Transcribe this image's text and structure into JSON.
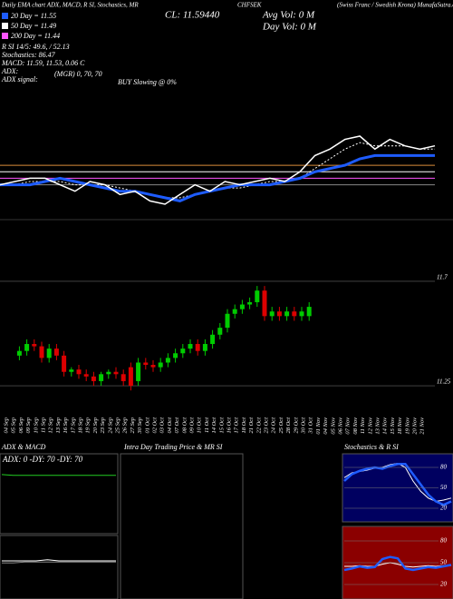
{
  "header": {
    "caption": "Daily EMA chart ADX, MACD, R SI, Stochastics, MR",
    "symbol": "CHFSEK",
    "source": "(Swiss Franc / Swedish Krona) MunafaSutra.com",
    "close": "CL: 11.59440",
    "avg_vol": "Avg Vol: 0  M",
    "day_vol": "Day Vol: 0  M",
    "ema_lines": [
      {
        "text": "20 Day = 11.55",
        "color": "#1e5cff"
      },
      {
        "text": "50 Day = 11.49",
        "color": "#ffffff"
      },
      {
        "text": "200 Day = 11.44",
        "color": "#ff55ff"
      }
    ],
    "lines": [
      "R       SI 14/5: 49.6, / 52.13",
      "Stochastics: 86.47",
      "MACD: 11.59, 11.53, 0.06  C",
      "ADX:",
      "ADX  signal:"
    ],
    "mgr": "(MGR) 0, 70, 70",
    "signal": "BUY Slowing @ 0%"
  },
  "indicator_chart": {
    "type": "line",
    "ylim": [
      11.2,
      11.9
    ],
    "series": [
      {
        "color": "#d98c3a",
        "values": [
          11.39,
          11.39
        ]
      },
      {
        "color": "#ffffff",
        "values": [
          11.37,
          11.37
        ]
      },
      {
        "color": "#ff55ff",
        "values": [
          11.35,
          11.35
        ]
      },
      {
        "color": "#888888",
        "values": [
          11.33,
          11.33
        ]
      },
      {
        "color": "#ffffff",
        "dashed": true,
        "values": [
          11.33,
          11.33,
          11.34,
          11.34,
          11.34,
          11.33,
          11.33,
          11.33,
          11.32,
          11.31,
          11.3,
          11.29,
          11.29,
          11.3,
          11.31,
          11.32,
          11.32,
          11.33,
          11.34,
          11.34,
          11.35,
          11.38,
          11.41,
          11.44,
          11.46,
          11.45,
          11.45,
          11.45,
          11.44,
          11.44
        ]
      },
      {
        "color": "#1e5cff",
        "width": 3,
        "values": [
          11.33,
          11.33,
          11.33,
          11.34,
          11.35,
          11.34,
          11.33,
          11.32,
          11.31,
          11.31,
          11.3,
          11.29,
          11.28,
          11.3,
          11.31,
          11.32,
          11.33,
          11.33,
          11.33,
          11.34,
          11.35,
          11.37,
          11.38,
          11.39,
          11.41,
          11.42,
          11.42,
          11.42,
          11.42,
          11.42
        ]
      },
      {
        "color": "#ffffff",
        "width": 1.5,
        "values": [
          11.33,
          11.34,
          11.35,
          11.35,
          11.33,
          11.31,
          11.34,
          11.33,
          11.3,
          11.31,
          11.28,
          11.27,
          11.3,
          11.33,
          11.31,
          11.34,
          11.33,
          11.34,
          11.35,
          11.34,
          11.37,
          11.42,
          11.44,
          11.47,
          11.48,
          11.44,
          11.47,
          11.45,
          11.44,
          11.45
        ]
      }
    ]
  },
  "price_chart": {
    "type": "candlestick",
    "up_color": "#00cc00",
    "down_color": "#dd0000",
    "ylim": [
      11.133,
      11.778
    ],
    "yticks": [
      11.7,
      11.25
    ],
    "dates": [
      "04 Sep",
      "05 Sep",
      "06 Sep",
      "09 Sep",
      "10 Sep",
      "11 Sep",
      "12 Sep",
      "13 Sep",
      "16 Sep",
      "17 Sep",
      "18 Sep",
      "19 Sep",
      "20 Sep",
      "23 Sep",
      "24 Sep",
      "25 Sep",
      "26 Sep",
      "27 Sep",
      "30 Sep",
      "01 Oct",
      "02 Oct",
      "03 Oct",
      "04 Oct",
      "07 Oct",
      "08 Oct",
      "09 Oct",
      "10 Oct",
      "11 Oct",
      "14 Oct",
      "15 Oct",
      "16 Oct",
      "17 Oct",
      "18 Oct",
      "21 Oct",
      "22 Oct",
      "23 Oct",
      "24 Oct",
      "25 Oct",
      "28 Oct",
      "29 Oct",
      "30 Oct",
      "31 Oct",
      "01 Nov",
      "04 Nov",
      "05 Nov",
      "06 Nov",
      "07 Nov",
      "08 Nov",
      "11 Nov",
      "12 Nov",
      "13 Nov",
      "14 Nov",
      "15 Nov",
      "18 Nov",
      "19 Nov",
      "20 Nov",
      "21 Nov"
    ],
    "open": [
      null,
      null,
      11.38,
      11.4,
      11.43,
      11.42,
      11.37,
      11.41,
      11.38,
      11.31,
      11.32,
      11.3,
      11.29,
      11.27,
      11.3,
      11.31,
      11.3,
      11.33,
      11.27,
      11.35,
      11.34,
      11.33,
      11.35,
      11.37,
      11.39,
      11.41,
      11.43,
      11.4,
      11.43,
      11.47,
      11.5,
      11.56,
      11.58,
      11.6,
      11.61,
      11.66,
      11.55,
      11.57,
      11.55,
      11.57,
      11.55,
      11.55,
      null,
      null,
      null,
      null,
      null,
      null,
      null,
      null,
      null,
      null,
      null,
      null,
      null,
      null,
      null
    ],
    "high": [
      null,
      null,
      11.42,
      11.45,
      11.45,
      11.44,
      11.43,
      11.43,
      11.4,
      11.33,
      11.34,
      11.32,
      11.31,
      11.31,
      11.32,
      11.33,
      11.32,
      11.35,
      11.37,
      11.37,
      11.36,
      11.37,
      11.39,
      11.41,
      11.43,
      11.45,
      11.45,
      11.45,
      11.49,
      11.52,
      11.58,
      11.6,
      11.62,
      11.63,
      11.68,
      11.68,
      11.59,
      11.59,
      11.59,
      11.59,
      11.59,
      11.61,
      null,
      null,
      null,
      null,
      null,
      null,
      null,
      null,
      null,
      null,
      null,
      null,
      null,
      null,
      null
    ],
    "low": [
      null,
      null,
      11.36,
      11.38,
      11.4,
      11.35,
      11.35,
      11.36,
      11.29,
      11.29,
      11.28,
      11.27,
      11.25,
      11.25,
      11.28,
      11.28,
      11.25,
      11.23,
      11.25,
      11.32,
      11.31,
      11.31,
      11.33,
      11.35,
      11.37,
      11.39,
      11.38,
      11.38,
      11.41,
      11.45,
      11.48,
      11.54,
      11.56,
      11.58,
      11.59,
      11.53,
      11.53,
      11.53,
      11.53,
      11.53,
      11.53,
      11.53,
      null,
      null,
      null,
      null,
      null,
      null,
      null,
      null,
      null,
      null,
      null,
      null,
      null,
      null,
      null
    ],
    "close": [
      null,
      null,
      11.4,
      11.43,
      11.42,
      11.37,
      11.41,
      11.38,
      11.31,
      11.32,
      11.3,
      11.29,
      11.27,
      11.3,
      11.31,
      11.3,
      11.27,
      11.25,
      11.35,
      11.34,
      11.33,
      11.35,
      11.37,
      11.39,
      11.41,
      11.43,
      11.4,
      11.43,
      11.47,
      11.5,
      11.56,
      11.58,
      11.6,
      11.61,
      11.66,
      11.55,
      11.57,
      11.55,
      11.57,
      11.55,
      11.57,
      11.59,
      null,
      null,
      null,
      null,
      null,
      null,
      null,
      null,
      null,
      null,
      null,
      null,
      null,
      null,
      null
    ]
  },
  "adx_panel": {
    "title": "ADX  & MACD",
    "readout": "ADX: 0  -DY: 70  -DY: 70",
    "ylim": [
      0,
      100
    ],
    "series": [
      {
        "color": "#22cc22",
        "values": [
          74,
          73,
          73,
          73,
          73,
          73,
          73,
          73,
          73,
          73,
          73
        ]
      }
    ]
  },
  "macd_panel": {
    "ylim": [
      -0.3,
      0.3
    ],
    "series": [
      {
        "color": "#888888",
        "values": [
          0.04,
          0.04,
          0.05,
          0.05,
          0.05,
          0.05,
          0.05,
          0.05,
          0.05,
          0.05,
          0.05
        ]
      },
      {
        "color": "#ffffff",
        "values": [
          0.06,
          0.06,
          0.06,
          0.06,
          0.07,
          0.06,
          0.06,
          0.06,
          0.06,
          0.06,
          0.06
        ]
      }
    ]
  },
  "intraday_panel": {
    "title": "Intra  Day Trading Price  & MR                SI"
  },
  "stoch_panel": {
    "title": "Stochastics & R                SI",
    "ylim": [
      0,
      100
    ],
    "yticks": [
      80,
      50,
      20
    ],
    "series": [
      {
        "color": "#ffffff",
        "values": [
          65,
          72,
          74,
          76,
          79,
          80,
          84,
          86,
          80,
          60,
          45,
          35,
          30,
          32,
          35
        ]
      },
      {
        "color": "#1e5cff",
        "width": 2.5,
        "values": [
          60,
          70,
          75,
          78,
          80,
          78,
          82,
          85,
          85,
          70,
          55,
          40,
          30,
          25,
          30
        ]
      }
    ]
  },
  "rsi_panel": {
    "ylim": [
      0,
      100
    ],
    "yticks": [
      80,
      50,
      20
    ],
    "series": [
      {
        "color": "#ffffff",
        "values": [
          45,
          45,
          46,
          45,
          45,
          48,
          50,
          48,
          45,
          44,
          45,
          46,
          45,
          46,
          46
        ]
      },
      {
        "color": "#1e5cff",
        "width": 2.5,
        "values": [
          40,
          42,
          45,
          43,
          44,
          55,
          58,
          56,
          42,
          40,
          42,
          44,
          43,
          45,
          47
        ]
      }
    ]
  }
}
